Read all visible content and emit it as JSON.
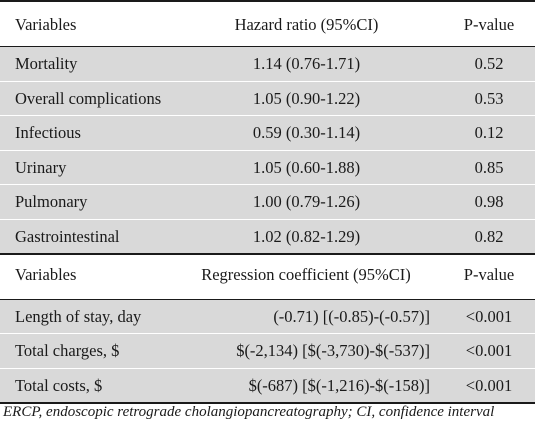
{
  "table1": {
    "headers": [
      "Variables",
      "Hazard ratio (95%CI)",
      "P-value"
    ],
    "rows": [
      {
        "variable": "Mortality",
        "estimate": "1.14 (0.76-1.71)",
        "p": "0.52"
      },
      {
        "variable": "Overall complications",
        "estimate": "1.05 (0.90-1.22)",
        "p": "0.53"
      },
      {
        "variable": "Infectious",
        "estimate": "0.59 (0.30-1.14)",
        "p": "0.12"
      },
      {
        "variable": "Urinary",
        "estimate": "1.05 (0.60-1.88)",
        "p": "0.85"
      },
      {
        "variable": "Pulmonary",
        "estimate": "1.00 (0.79-1.26)",
        "p": "0.98"
      },
      {
        "variable": "Gastrointestinal",
        "estimate": "1.02 (0.82-1.29)",
        "p": "0.82"
      }
    ]
  },
  "table2": {
    "headers": [
      "Variables",
      "Regression coefficient (95%CI)",
      "P-value"
    ],
    "rows": [
      {
        "variable": "Length of stay, day",
        "estimate": "(-0.71) [(-0.85)-(-0.57)]",
        "p": "<0.001"
      },
      {
        "variable": "Total charges, $",
        "estimate": "$(-2,134) [$(-3,730)-$(-537)]",
        "p": "<0.001"
      },
      {
        "variable": "Total costs, $",
        "estimate": "$(-687) [$(-1,216)-$(-158)]",
        "p": "<0.001"
      }
    ]
  },
  "footnote": "ERCP, endoscopic retrograde cholangiopancreatography; CI, confidence interval"
}
